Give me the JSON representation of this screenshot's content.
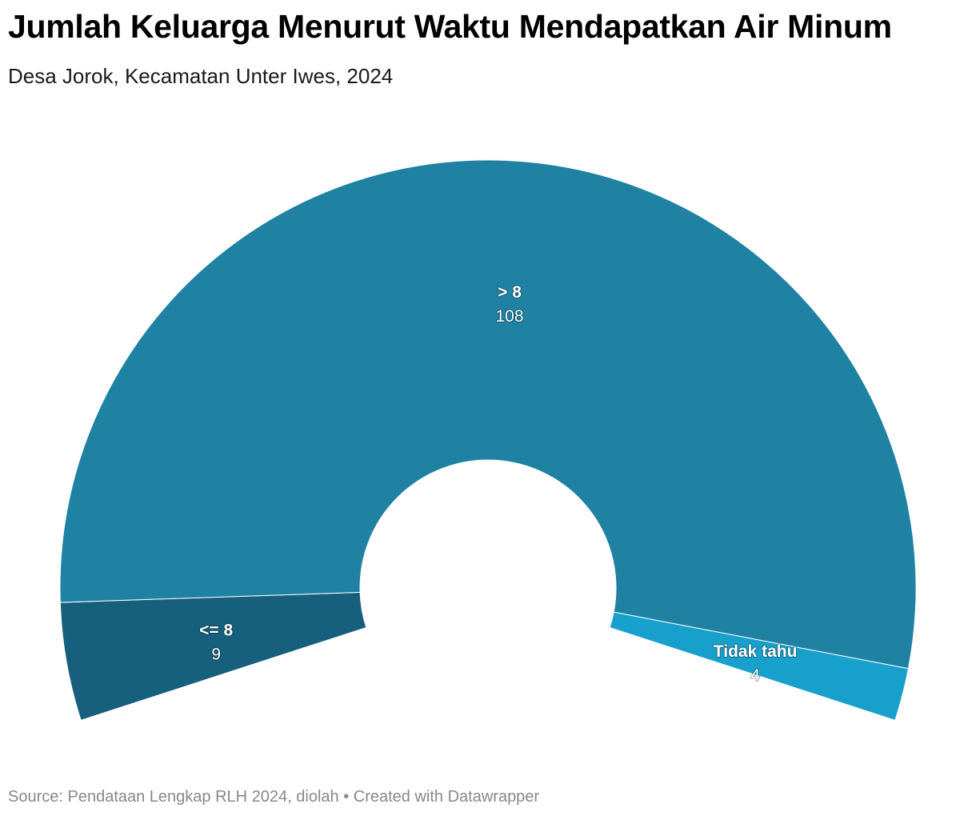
{
  "title": "Jumlah Keluarga Menurut Waktu Mendapatkan Air Minum",
  "subtitle": "Desa Jorok, Kecamatan Unter Iwes, 2024",
  "source": "Source: Pendataan Lengkap RLH 2024, diolah • Created with Datawrapper",
  "chart_data": {
    "type": "pie",
    "variant": "semi-donut (arc spanning approx. 220 degrees)",
    "categories": [
      "<= 8",
      "> 8",
      "Tidak tahu"
    ],
    "values": [
      9,
      108,
      4
    ],
    "colors": [
      "#17607d",
      "#1f82a3",
      "#18a0cd"
    ],
    "legend": "none (labels on slices)"
  }
}
